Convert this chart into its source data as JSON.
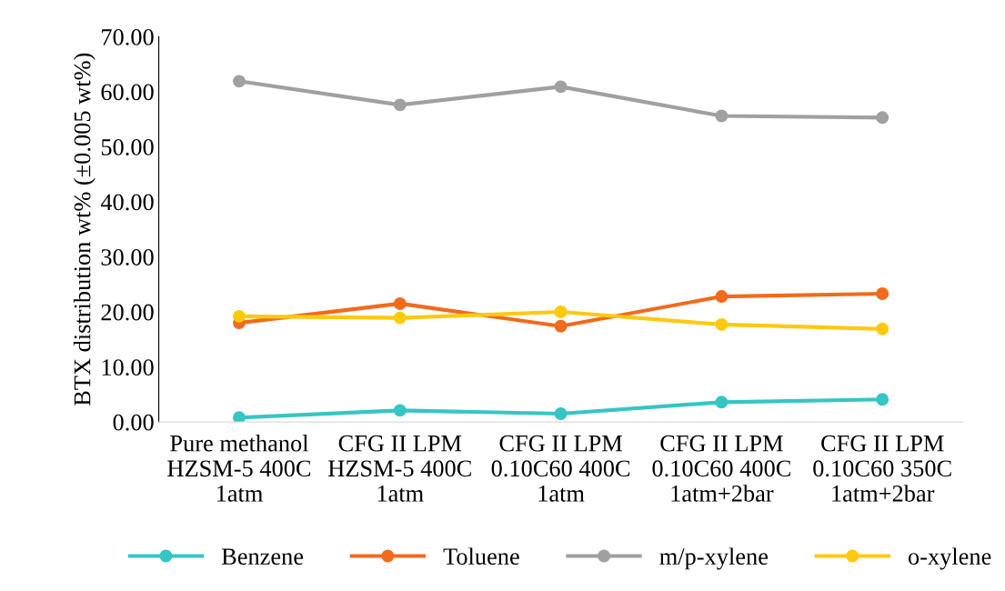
{
  "chart_data": {
    "type": "line",
    "ylabel": "BTX distribution wt% (±0.005 wt%)",
    "categories": [
      "Pure methanol\nHZSM-5 400C\n1atm",
      "CFG II LPM\nHZSM-5 400C\n1atm",
      "CFG II LPM\n0.10C60 400C\n1atm",
      "CFG II LPM\n0.10C60 400C\n1atm+2bar",
      "CFG II LPM\n0.10C60 350C\n1atm+2bar"
    ],
    "series": [
      {
        "name": "Benzene",
        "color": "#36c5c5",
        "values": [
          0.8,
          2.1,
          1.5,
          3.6,
          4.1
        ]
      },
      {
        "name": "Toluene",
        "color": "#f26a1b",
        "values": [
          18.0,
          21.5,
          17.4,
          22.8,
          23.3
        ]
      },
      {
        "name": "m/p-xylene",
        "color": "#a0a0a0",
        "values": [
          61.9,
          57.6,
          60.9,
          55.6,
          55.3
        ]
      },
      {
        "name": "o-xylene",
        "color": "#ffc90e",
        "values": [
          19.2,
          18.9,
          20.0,
          17.7,
          16.9
        ]
      }
    ],
    "ylim": [
      0,
      70
    ],
    "yticks": [
      {
        "value": 0,
        "label": "0.00"
      },
      {
        "value": 10,
        "label": "10.00"
      },
      {
        "value": 20,
        "label": "20.00"
      },
      {
        "value": 30,
        "label": "30.00"
      },
      {
        "value": 40,
        "label": "40.00"
      },
      {
        "value": 50,
        "label": "50.00"
      },
      {
        "value": 60,
        "label": "60.00"
      },
      {
        "value": 70,
        "label": "70.00"
      }
    ],
    "grid": false,
    "legend": "bottom",
    "marker": "circle",
    "line_style": "solid"
  }
}
